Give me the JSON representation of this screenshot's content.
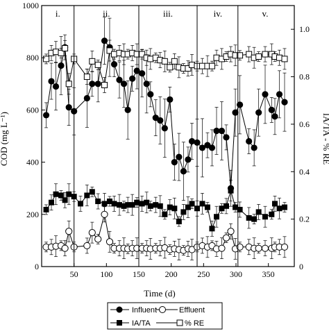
{
  "chart_data": {
    "type": "line",
    "xlabel": "Time (d)",
    "ylabel_left": "COD (mg L⁻¹)",
    "ylabel_right": "IA/TA - % RE",
    "xlim": [
      0,
      390
    ],
    "ylim_left": [
      0,
      1000
    ],
    "ylim_right": [
      0,
      1.1
    ],
    "x_ticks": [
      50,
      100,
      150,
      200,
      250,
      300,
      350
    ],
    "y_left_ticks": [
      0,
      200,
      400,
      600,
      800,
      1000
    ],
    "y_right_ticks": [
      0.0,
      0.2,
      0.4,
      0.6,
      0.8,
      1.0
    ],
    "y_right_tick_labels": [
      "0",
      "0.2",
      "0.4",
      "0.6",
      "0.8",
      "1.0"
    ],
    "phase_boundaries": [
      50,
      150,
      240,
      303
    ],
    "phases": [
      {
        "label": "i.",
        "x": 25
      },
      {
        "label": "ii.",
        "x": 100
      },
      {
        "label": "iii.",
        "x": 195
      },
      {
        "label": "iv.",
        "x": 272
      },
      {
        "label": "v.",
        "x": 345
      }
    ],
    "grid": false,
    "legend_position": "bottom",
    "series": [
      {
        "name": "Influent",
        "axis": "left",
        "marker": "filled-circle",
        "x": [
          7,
          15,
          22,
          30,
          36,
          42,
          50,
          70,
          78,
          87,
          97,
          105,
          112,
          120,
          127,
          133,
          140,
          147,
          155,
          162,
          168,
          176,
          183,
          190,
          198,
          205,
          212,
          219,
          226,
          232,
          240,
          248,
          256,
          263,
          270,
          278,
          285,
          292,
          299,
          306,
          320,
          328,
          335,
          345,
          355,
          360,
          367,
          375
        ],
        "values": [
          580,
          710,
          690,
          770,
          840,
          610,
          595,
          645,
          700,
          700,
          865,
          840,
          775,
          715,
          700,
          600,
          720,
          750,
          740,
          700,
          660,
          570,
          560,
          530,
          640,
          400,
          420,
          365,
          410,
          480,
          475,
          455,
          465,
          455,
          520,
          520,
          495,
          300,
          590,
          620,
          480,
          455,
          590,
          660,
          600,
          575,
          660,
          630
        ]
      },
      {
        "name": "Effluent",
        "axis": "left",
        "marker": "open-circle",
        "x": [
          7,
          15,
          22,
          30,
          36,
          42,
          50,
          70,
          78,
          87,
          97,
          105,
          112,
          120,
          127,
          133,
          140,
          147,
          155,
          162,
          168,
          176,
          183,
          190,
          198,
          205,
          212,
          219,
          226,
          232,
          240,
          248,
          256,
          263,
          270,
          278,
          285,
          292,
          299,
          306,
          320,
          328,
          335,
          345,
          355,
          360,
          367,
          375
        ],
        "values": [
          75,
          75,
          78,
          80,
          70,
          135,
          75,
          80,
          130,
          105,
          200,
          95,
          70,
          70,
          70,
          68,
          70,
          70,
          70,
          70,
          68,
          70,
          70,
          72,
          65,
          68,
          65,
          62,
          68,
          65,
          75,
          80,
          75,
          80,
          68,
          70,
          110,
          135,
          68,
          75,
          75,
          70,
          70,
          70,
          70,
          75,
          75,
          75
        ]
      },
      {
        "name": "IA/TA",
        "axis": "right",
        "marker": "filled-square",
        "x": [
          7,
          15,
          22,
          30,
          36,
          42,
          50,
          60,
          70,
          78,
          87,
          97,
          105,
          112,
          120,
          127,
          133,
          140,
          147,
          155,
          162,
          168,
          176,
          183,
          190,
          198,
          205,
          212,
          219,
          226,
          232,
          240,
          248,
          256,
          263,
          270,
          278,
          285,
          292,
          299,
          306,
          320,
          328,
          335,
          345,
          355,
          360,
          367,
          375
        ],
        "values": [
          0.24,
          0.27,
          0.305,
          0.3,
          0.28,
          0.305,
          0.295,
          0.265,
          0.3,
          0.315,
          0.275,
          0.265,
          0.275,
          0.265,
          0.26,
          0.255,
          0.26,
          0.26,
          0.27,
          0.265,
          0.27,
          0.255,
          0.26,
          0.255,
          0.22,
          0.25,
          0.245,
          0.19,
          0.23,
          0.25,
          0.265,
          0.245,
          0.265,
          0.25,
          0.16,
          0.21,
          0.245,
          0.255,
          0.32,
          0.25,
          0.24,
          0.205,
          0.2,
          0.23,
          0.21,
          0.22,
          0.265,
          0.245,
          0.25
        ]
      },
      {
        "name": "% RE",
        "axis": "right",
        "marker": "open-square",
        "x": [
          7,
          15,
          22,
          30,
          36,
          42,
          50,
          70,
          78,
          87,
          97,
          105,
          112,
          120,
          127,
          133,
          140,
          147,
          155,
          162,
          168,
          176,
          183,
          190,
          198,
          205,
          212,
          219,
          226,
          232,
          240,
          248,
          256,
          263,
          270,
          278,
          285,
          292,
          299,
          306,
          320,
          328,
          335,
          345,
          355,
          360,
          367,
          375
        ],
        "values": [
          0.875,
          0.9,
          0.905,
          0.9,
          0.92,
          0.77,
          0.875,
          0.8,
          0.865,
          0.85,
          0.765,
          0.91,
          0.895,
          0.9,
          0.895,
          0.895,
          0.9,
          0.895,
          0.895,
          0.88,
          0.875,
          0.88,
          0.87,
          0.865,
          0.84,
          0.865,
          0.84,
          0.835,
          0.835,
          0.85,
          0.845,
          0.845,
          0.845,
          0.845,
          0.88,
          0.875,
          0.885,
          0.895,
          0.89,
          0.89,
          0.895,
          0.88,
          0.885,
          0.895,
          0.895,
          0.885,
          0.88,
          0.875
        ]
      }
    ]
  }
}
